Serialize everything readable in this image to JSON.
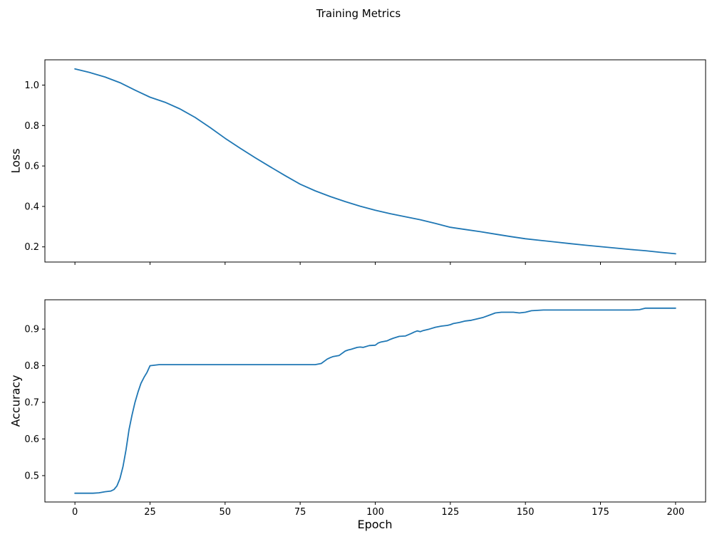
{
  "figure": {
    "title": "Training Metrics",
    "xlabel": "Epoch",
    "background": "#ffffff",
    "line_color": "#1f77b4"
  },
  "chart_data": [
    {
      "type": "line",
      "name": "loss",
      "title": "",
      "ylabel": "Loss",
      "xlabel": "",
      "grid": false,
      "legend": "none",
      "xlim": [
        -10,
        210
      ],
      "ylim": [
        0.125,
        1.125
      ],
      "xticks": [
        0,
        25,
        50,
        75,
        100,
        125,
        150,
        175,
        200
      ],
      "xtick_labels": false,
      "yticks": [
        0.2,
        0.4,
        0.6,
        0.8,
        1.0
      ],
      "x": [
        0,
        5,
        10,
        15,
        20,
        25,
        30,
        35,
        40,
        45,
        50,
        55,
        60,
        65,
        70,
        75,
        80,
        85,
        90,
        95,
        100,
        105,
        110,
        115,
        120,
        125,
        130,
        135,
        140,
        145,
        150,
        155,
        160,
        165,
        170,
        175,
        180,
        185,
        190,
        195,
        200
      ],
      "y": [
        1.08,
        1.062,
        1.04,
        1.012,
        0.975,
        0.94,
        0.915,
        0.882,
        0.84,
        0.79,
        0.737,
        0.688,
        0.641,
        0.596,
        0.552,
        0.51,
        0.477,
        0.449,
        0.424,
        0.401,
        0.381,
        0.364,
        0.349,
        0.334,
        0.316,
        0.297,
        0.286,
        0.275,
        0.263,
        0.251,
        0.24,
        0.232,
        0.224,
        0.216,
        0.208,
        0.201,
        0.194,
        0.187,
        0.181,
        0.173,
        0.166
      ]
    },
    {
      "type": "line",
      "name": "accuracy",
      "title": "",
      "ylabel": "Accuracy",
      "xlabel": "Epoch",
      "grid": false,
      "legend": "none",
      "xlim": [
        -10,
        210
      ],
      "ylim": [
        0.428,
        0.98
      ],
      "xticks": [
        0,
        25,
        50,
        75,
        100,
        125,
        150,
        175,
        200
      ],
      "xtick_labels": true,
      "yticks": [
        0.5,
        0.6,
        0.7,
        0.8,
        0.9
      ],
      "x": [
        0,
        2,
        4,
        6,
        8,
        10,
        11,
        12,
        13,
        14,
        15,
        16,
        17,
        18,
        19,
        20,
        21,
        22,
        23,
        24,
        25,
        26,
        27,
        28,
        30,
        35,
        40,
        45,
        50,
        55,
        60,
        65,
        70,
        75,
        80,
        82,
        84,
        85,
        86,
        88,
        90,
        91,
        92,
        94,
        95,
        96,
        98,
        100,
        101,
        102,
        104,
        105,
        106,
        108,
        110,
        112,
        113,
        114,
        115,
        116,
        118,
        120,
        122,
        124,
        125,
        126,
        128,
        130,
        132,
        134,
        136,
        138,
        140,
        142,
        144,
        146,
        148,
        150,
        152,
        154,
        156,
        160,
        165,
        170,
        175,
        180,
        185,
        188,
        190,
        195,
        200
      ],
      "y": [
        0.452,
        0.452,
        0.452,
        0.452,
        0.453,
        0.456,
        0.457,
        0.458,
        0.462,
        0.472,
        0.492,
        0.525,
        0.57,
        0.625,
        0.665,
        0.7,
        0.728,
        0.752,
        0.768,
        0.782,
        0.8,
        0.801,
        0.802,
        0.803,
        0.803,
        0.803,
        0.803,
        0.803,
        0.803,
        0.803,
        0.803,
        0.803,
        0.803,
        0.803,
        0.803,
        0.806,
        0.818,
        0.822,
        0.825,
        0.828,
        0.84,
        0.843,
        0.845,
        0.85,
        0.851,
        0.85,
        0.855,
        0.856,
        0.862,
        0.865,
        0.868,
        0.872,
        0.875,
        0.88,
        0.881,
        0.888,
        0.892,
        0.895,
        0.893,
        0.896,
        0.9,
        0.905,
        0.908,
        0.91,
        0.912,
        0.915,
        0.918,
        0.922,
        0.924,
        0.928,
        0.932,
        0.938,
        0.944,
        0.946,
        0.946,
        0.946,
        0.944,
        0.946,
        0.95,
        0.951,
        0.952,
        0.952,
        0.952,
        0.952,
        0.952,
        0.952,
        0.952,
        0.953,
        0.957,
        0.957,
        0.957
      ]
    }
  ]
}
